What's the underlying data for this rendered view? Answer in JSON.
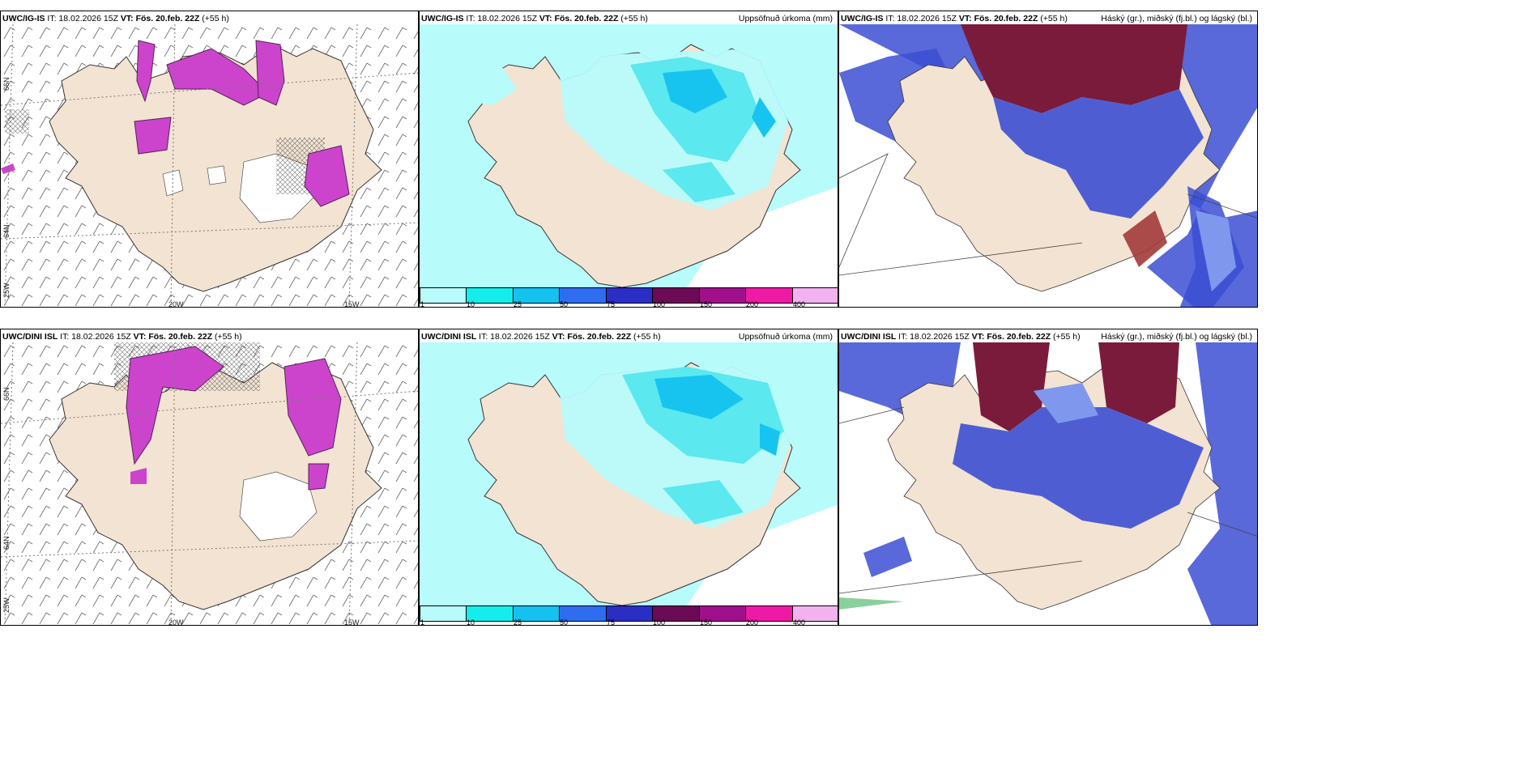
{
  "panels": [
    {
      "model": "UWC/IG-IS",
      "init": "IT: 18.02.2026 15Z",
      "valid": "VT: Fös. 20.feb. 22Z",
      "lead": "(+55 h)",
      "title": ""
    },
    {
      "model": "UWC/IG-IS",
      "init": "IT: 18.02.2026 15Z",
      "valid": "VT: Fös. 20.feb. 22Z",
      "lead": "(+55 h)",
      "title": "Uppsöfnuð úrkoma (mm)"
    },
    {
      "model": "UWC/IG-IS",
      "init": "IT: 18.02.2026 15Z",
      "valid": "VT: Fös. 20.feb. 22Z",
      "lead": "(+55 h)",
      "title": "Háský (gr.), miðský (fj.bl.) og lágský (bl.)"
    },
    {
      "model": "UWC/DINI ISL",
      "init": "IT: 18.02.2026 15Z",
      "valid": "VT: Fös. 20.feb. 22Z",
      "lead": "(+55 h)",
      "title": ""
    },
    {
      "model": "UWC/DINI ISL",
      "init": "IT: 18.02.2026 15Z",
      "valid": "VT: Fös. 20.feb. 22Z",
      "lead": "(+55 h)",
      "title": "Uppsöfnuð úrkoma (mm)"
    },
    {
      "model": "UWC/DINI ISL",
      "init": "IT: 18.02.2026 15Z",
      "valid": "VT: Fös. 20.feb. 22Z",
      "lead": "(+55 h)",
      "title": "Háský (gr.), miðský (fj.bl.) og lágský (bl.)"
    }
  ],
  "grid_labels": {
    "lat66": "66N",
    "lat64": "64N",
    "lon25": "25W",
    "lon20": "20W",
    "lon15": "15W"
  },
  "colorbar": {
    "ticks": [
      "1",
      "10",
      "25",
      "50",
      "75",
      "100",
      "150",
      "200",
      "400"
    ],
    "colors": [
      "#b7fbfb",
      "#15eded",
      "#14c1ef",
      "#2e6cf0",
      "#2b2ec4",
      "#6b0a55",
      "#a0108c",
      "#ee1aa6",
      "#f2b2ef"
    ]
  },
  "colors": {
    "land": "#f3e3d2",
    "sea_precip": "#b7fbfb",
    "precip_mid": "#5be8ef",
    "precip_high": "#16c4ef",
    "high_cloud": "#7a1b3c",
    "mid_cloud": "#3c4fd2",
    "low_cloud": "#7f98ee",
    "snow": "#cc44cc"
  }
}
